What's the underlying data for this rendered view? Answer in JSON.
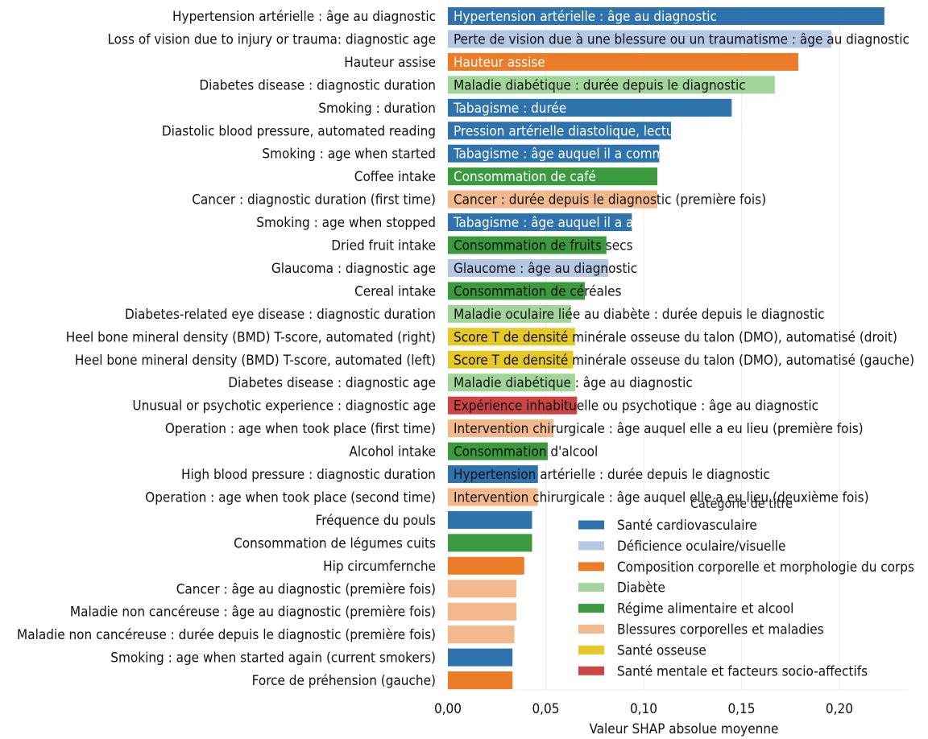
{
  "chart_data": {
    "type": "bar",
    "orientation": "horizontal",
    "xlabel": "Valeur SHAP absolue moyenne",
    "xlim": [
      0,
      0.235
    ],
    "xticks": [
      0,
      0.05,
      0.1,
      0.15,
      0.2
    ],
    "xtick_labels": [
      "0,00",
      "0,05",
      "0,10",
      "0,15",
      "0,20"
    ],
    "grid": "vertical",
    "legend": {
      "title": "Catégorie de titre",
      "placement": "bottom-right",
      "entries": [
        {
          "name": "Santé cardiovasculaire",
          "color": "#2e73ad"
        },
        {
          "name": "Déficience oculaire/visuelle",
          "color": "#b4c7e3"
        },
        {
          "name": "Composition corporelle et morphologie du corps",
          "color": "#ec7c28"
        },
        {
          "name": "Diabète",
          "color": "#a2d59a"
        },
        {
          "name": "Régime alimentaire et alcool",
          "color": "#3b9a3e"
        },
        {
          "name": "Blessures corporelles et maladies",
          "color": "#f3b98d"
        },
        {
          "name": "Santé osseuse",
          "color": "#e6c826"
        },
        {
          "name": "Santé mentale et facteurs socio-affectifs",
          "color": "#cc4444"
        }
      ]
    },
    "bars": [
      {
        "label": "Hypertension artérielle : âge au diagnostic",
        "inner": "Hypertension artérielle : âge au diagnostic",
        "value": 0.223,
        "cat": 0,
        "inner_color": "#ffffff"
      },
      {
        "label": "Loss of vision due to injury or trauma: diagnostic age",
        "inner": "Perte de vision due à une blessure ou un traumatisme : âge au diagnostic",
        "value": 0.196,
        "cat": 1,
        "inner_color": "#111111"
      },
      {
        "label": "Hauteur assise",
        "inner": "Hauteur assise",
        "value": 0.179,
        "cat": 2,
        "inner_color": "#ffffff"
      },
      {
        "label": "Diabetes disease : diagnostic duration",
        "inner": "Maladie diabétique : durée depuis le diagnostic",
        "value": 0.167,
        "cat": 3,
        "inner_color": "#111111"
      },
      {
        "label": "Smoking : duration",
        "inner": "Tabagisme : durée",
        "value": 0.145,
        "cat": 0,
        "inner_color": "#ffffff"
      },
      {
        "label": "Diastolic blood pressure, automated reading",
        "inner": "Pression artérielle diastolique, lecture automatisée",
        "value": 0.114,
        "cat": 0,
        "inner_color": "#ffffff"
      },
      {
        "label": "Smoking : age when started",
        "inner": "Tabagisme : âge auquel il a commencé",
        "value": 0.108,
        "cat": 0,
        "inner_color": "#ffffff"
      },
      {
        "label": "Coffee intake",
        "inner": "Consommation de café",
        "value": 0.107,
        "cat": 4,
        "inner_color": "#ffffff"
      },
      {
        "label": "Cancer : diagnostic duration (first time)",
        "inner": "Cancer : durée depuis le diagnostic (première fois)",
        "value": 0.107,
        "cat": 5,
        "inner_color": "#111111"
      },
      {
        "label": "Smoking : age when stopped",
        "inner": "Tabagisme : âge auquel il a arrêté",
        "value": 0.094,
        "cat": 0,
        "inner_color": "#ffffff"
      },
      {
        "label": "Dried fruit intake",
        "inner": "Consommation de fruits secs",
        "value": 0.081,
        "cat": 4,
        "inner_color": "#111111"
      },
      {
        "label": "Glaucoma : diagnostic age",
        "inner": "Glaucome : âge au diagnostic",
        "value": 0.082,
        "cat": 1,
        "inner_color": "#111111"
      },
      {
        "label": "Cereal intake",
        "inner": "Consommation de céréales",
        "value": 0.07,
        "cat": 4,
        "inner_color": "#111111"
      },
      {
        "label": "Diabetes-related eye disease : diagnostic duration",
        "inner": "Maladie oculaire liée au diabète : durée depuis le diagnostic",
        "value": 0.063,
        "cat": 3,
        "inner_color": "#111111"
      },
      {
        "label": "Heel bone mineral density (BMD) T-score, automated (right)",
        "inner": "Score T de densité minérale osseuse du talon (DMO), automatisé (droit)",
        "value": 0.065,
        "cat": 6,
        "inner_color": "#111111"
      },
      {
        "label": "Heel bone mineral density (BMD) T-score, automated (left)",
        "inner": "Score T de densité minérale osseuse du talon (DMO), automatisé (gauche)",
        "value": 0.064,
        "cat": 6,
        "inner_color": "#111111"
      },
      {
        "label": "Diabetes disease : diagnostic age",
        "inner": "Maladie diabétique : âge au diagnostic",
        "value": 0.065,
        "cat": 3,
        "inner_color": "#111111"
      },
      {
        "label": "Unusual or psychotic experience : diagnostic age",
        "inner": "Expérience inhabituelle ou psychotique : âge au diagnostic",
        "value": 0.066,
        "cat": 7,
        "inner_color": "#111111"
      },
      {
        "label": "Operation : age when took place (first time)",
        "inner": "Intervention chirurgicale : âge auquel elle a eu lieu (première fois)",
        "value": 0.054,
        "cat": 5,
        "inner_color": "#111111"
      },
      {
        "label": "Alcohol intake",
        "inner": "Consommation d'alcool",
        "value": 0.051,
        "cat": 4,
        "inner_color": "#111111"
      },
      {
        "label": "High blood pressure : diagnostic duration",
        "inner": "Hypertension artérielle : durée depuis le diagnostic",
        "value": 0.046,
        "cat": 0,
        "inner_color": "#111111"
      },
      {
        "label": "Operation : age when took place (second time)",
        "inner": "Intervention chirurgicale : âge auquel elle a eu lieu (deuxième fois)",
        "value": 0.046,
        "cat": 5,
        "inner_color": "#111111"
      },
      {
        "label": "Fréquence du pouls",
        "inner": "",
        "value": 0.043,
        "cat": 0,
        "inner_color": "#111111"
      },
      {
        "label": "Consommation de légumes cuits",
        "inner": "",
        "value": 0.043,
        "cat": 4,
        "inner_color": "#111111"
      },
      {
        "label": "Hip circumfernche",
        "inner": "",
        "value": 0.039,
        "cat": 2,
        "inner_color": "#111111"
      },
      {
        "label": "Cancer : âge au diagnostic (première fois)",
        "inner": "",
        "value": 0.035,
        "cat": 5,
        "inner_color": "#111111"
      },
      {
        "label": "Maladie non cancéreuse : âge au diagnostic (première fois)",
        "inner": "",
        "value": 0.035,
        "cat": 5,
        "inner_color": "#111111"
      },
      {
        "label": "Maladie non cancéreuse : durée depuis le diagnostic (première fois)",
        "inner": "",
        "value": 0.034,
        "cat": 5,
        "inner_color": "#111111"
      },
      {
        "label": "Smoking : age when started again (current smokers)",
        "inner": "",
        "value": 0.033,
        "cat": 0,
        "inner_color": "#111111"
      },
      {
        "label": "Force de préhension (gauche)",
        "inner": "",
        "value": 0.033,
        "cat": 2,
        "inner_color": "#111111"
      }
    ]
  }
}
